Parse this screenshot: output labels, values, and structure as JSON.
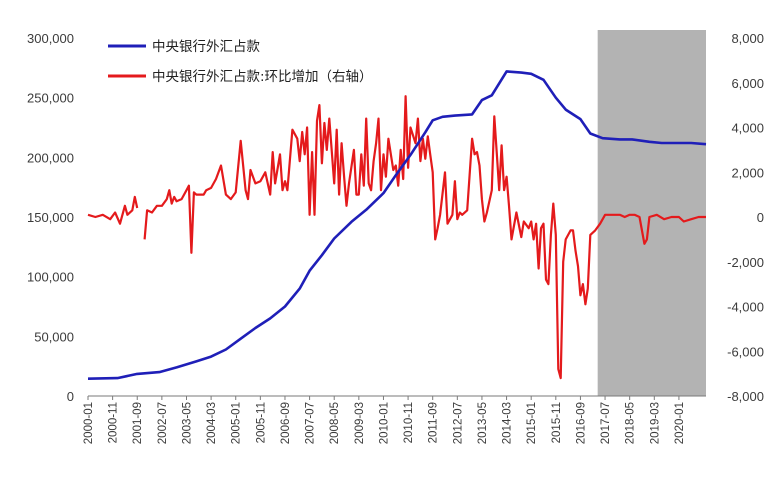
{
  "chart_data": {
    "type": "line",
    "title": "",
    "xlabel": "",
    "ylabel": "",
    "x_tick_labels": [
      "2000-01",
      "2000-11",
      "2001-09",
      "2002-07",
      "2003-05",
      "2004-03",
      "2005-01",
      "2005-11",
      "2006-09",
      "2007-07",
      "2008-05",
      "2009-03",
      "2010-01",
      "2010-11",
      "2011-09",
      "2012-07",
      "2013-05",
      "2014-03",
      "2015-01",
      "2015-11",
      "2016-09",
      "2017-07",
      "2018-05",
      "2019-03",
      "2020-01"
    ],
    "x_range": [
      "2000-01",
      "2020-12"
    ],
    "ylim_left": [
      0,
      300000
    ],
    "ylim_right": [
      -8000,
      8000
    ],
    "y_left_ticks": [
      "0",
      "50,000",
      "100,000",
      "150,000",
      "200,000",
      "250,000",
      "300,000"
    ],
    "y_right_ticks": [
      "-8,000",
      "-6,000",
      "-4,000",
      "-2,000",
      "0",
      "2,000",
      "4,000",
      "6,000",
      "8,000"
    ],
    "shaded_region": {
      "from": "2017-04",
      "to": "2020-12",
      "color": "#b3b3b3"
    },
    "legend_position": "top-left",
    "series": [
      {
        "name": "中央银行外汇占款",
        "axis": "left",
        "color": "#1f1fb8",
        "points": [
          [
            "2000-01",
            14500
          ],
          [
            "2001-01",
            15000
          ],
          [
            "2001-09",
            18500
          ],
          [
            "2002-06",
            20000
          ],
          [
            "2003-01",
            24000
          ],
          [
            "2003-09",
            29000
          ],
          [
            "2004-03",
            33000
          ],
          [
            "2004-09",
            39000
          ],
          [
            "2005-03",
            48000
          ],
          [
            "2005-09",
            57000
          ],
          [
            "2006-03",
            65000
          ],
          [
            "2006-09",
            75000
          ],
          [
            "2007-03",
            90000
          ],
          [
            "2007-07",
            105000
          ],
          [
            "2007-12",
            118000
          ],
          [
            "2008-05",
            132000
          ],
          [
            "2008-12",
            146000
          ],
          [
            "2009-06",
            156000
          ],
          [
            "2010-01",
            170000
          ],
          [
            "2010-06",
            185000
          ],
          [
            "2010-12",
            202000
          ],
          [
            "2011-06",
            221000
          ],
          [
            "2011-09",
            231000
          ],
          [
            "2012-01",
            234000
          ],
          [
            "2012-06",
            235000
          ],
          [
            "2013-01",
            236000
          ],
          [
            "2013-05",
            248000
          ],
          [
            "2013-09",
            252000
          ],
          [
            "2014-03",
            272000
          ],
          [
            "2014-09",
            271000
          ],
          [
            "2015-01",
            270000
          ],
          [
            "2015-06",
            265000
          ],
          [
            "2015-11",
            250000
          ],
          [
            "2016-03",
            240000
          ],
          [
            "2016-09",
            232000
          ],
          [
            "2017-01",
            220000
          ],
          [
            "2017-06",
            216000
          ],
          [
            "2018-01",
            215000
          ],
          [
            "2018-06",
            215000
          ],
          [
            "2019-01",
            213000
          ],
          [
            "2019-06",
            212000
          ],
          [
            "2020-06",
            212000
          ],
          [
            "2020-12",
            211000
          ]
        ]
      },
      {
        "name": "中央银行外汇占款:环比增加（右轴）",
        "axis": "right",
        "color": "#e41a1c",
        "segments": [
          [
            [
              "2000-01",
              100
            ],
            [
              "2000-04",
              0
            ],
            [
              "2000-07",
              100
            ],
            [
              "2000-10",
              -100
            ],
            [
              "2000-12",
              200
            ],
            [
              "2001-02",
              -300
            ],
            [
              "2001-04",
              500
            ],
            [
              "2001-05",
              100
            ],
            [
              "2001-07",
              300
            ],
            [
              "2001-08",
              900
            ],
            [
              "2001-09",
              400
            ]
          ],
          [
            [
              "2001-12",
              -1000
            ],
            [
              "2002-01",
              300
            ],
            [
              "2002-03",
              200
            ],
            [
              "2002-05",
              500
            ],
            [
              "2002-07",
              500
            ],
            [
              "2002-09",
              800
            ],
            [
              "2002-10",
              1200
            ],
            [
              "2002-11",
              600
            ],
            [
              "2002-12",
              900
            ],
            [
              "2003-01",
              700
            ],
            [
              "2003-03",
              800
            ],
            [
              "2003-05",
              1200
            ],
            [
              "2003-06",
              1400
            ],
            [
              "2003-07",
              -1600
            ],
            [
              "2003-08",
              1100
            ],
            [
              "2003-09",
              1000
            ],
            [
              "2003-10",
              1000
            ],
            [
              "2003-12",
              1000
            ],
            [
              "2004-01",
              1200
            ],
            [
              "2004-03",
              1300
            ],
            [
              "2004-05",
              1700
            ],
            [
              "2004-07",
              2300
            ],
            [
              "2004-09",
              1000
            ],
            [
              "2004-11",
              800
            ],
            [
              "2005-01",
              1100
            ],
            [
              "2005-03",
              3400
            ],
            [
              "2005-05",
              1200
            ],
            [
              "2005-06",
              800
            ],
            [
              "2005-07",
              2100
            ],
            [
              "2005-09",
              1500
            ],
            [
              "2005-11",
              1600
            ],
            [
              "2006-01",
              2000
            ],
            [
              "2006-03",
              1000
            ],
            [
              "2006-04",
              2900
            ],
            [
              "2006-05",
              1500
            ],
            [
              "2006-07",
              2800
            ],
            [
              "2006-08",
              1200
            ],
            [
              "2006-09",
              1600
            ],
            [
              "2006-10",
              1200
            ],
            [
              "2006-12",
              3900
            ],
            [
              "2007-02",
              3500
            ],
            [
              "2007-03",
              2500
            ],
            [
              "2007-04",
              3800
            ],
            [
              "2007-05",
              2800
            ],
            [
              "2007-06",
              4000
            ],
            [
              "2007-07",
              100
            ],
            [
              "2007-08",
              2900
            ],
            [
              "2007-09",
              100
            ],
            [
              "2007-10",
              4300
            ],
            [
              "2007-11",
              5000
            ],
            [
              "2007-12",
              2400
            ],
            [
              "2008-01",
              4200
            ],
            [
              "2008-02",
              3000
            ],
            [
              "2008-03",
              4400
            ],
            [
              "2008-05",
              1500
            ],
            [
              "2008-06",
              3900
            ],
            [
              "2008-07",
              1000
            ],
            [
              "2008-08",
              3300
            ],
            [
              "2008-09",
              1800
            ],
            [
              "2008-10",
              500
            ],
            [
              "2008-11",
              1500
            ],
            [
              "2009-01",
              3000
            ],
            [
              "2009-02",
              1000
            ],
            [
              "2009-03",
              1000
            ],
            [
              "2009-04",
              2800
            ],
            [
              "2009-05",
              1400
            ],
            [
              "2009-06",
              4400
            ],
            [
              "2009-07",
              1500
            ],
            [
              "2009-08",
              1200
            ],
            [
              "2009-09",
              2500
            ],
            [
              "2009-10",
              3300
            ],
            [
              "2009-11",
              4400
            ],
            [
              "2009-12",
              1200
            ],
            [
              "2010-01",
              2800
            ],
            [
              "2010-02",
              1800
            ],
            [
              "2010-03",
              3500
            ],
            [
              "2010-05",
              2100
            ],
            [
              "2010-06",
              2300
            ],
            [
              "2010-07",
              1400
            ],
            [
              "2010-08",
              3000
            ],
            [
              "2010-09",
              1700
            ],
            [
              "2010-10",
              5400
            ],
            [
              "2010-11",
              2200
            ],
            [
              "2010-12",
              4000
            ],
            [
              "2011-02",
              3300
            ],
            [
              "2011-03",
              4400
            ],
            [
              "2011-04",
              2500
            ],
            [
              "2011-05",
              3500
            ],
            [
              "2011-06",
              2600
            ],
            [
              "2011-07",
              3600
            ],
            [
              "2011-08",
              2800
            ],
            [
              "2011-09",
              2000
            ],
            [
              "2011-10",
              -1000
            ],
            [
              "2011-11",
              -500
            ],
            [
              "2011-12",
              100
            ],
            [
              "2012-02",
              2000
            ],
            [
              "2012-03",
              -300
            ],
            [
              "2012-05",
              100
            ],
            [
              "2012-06",
              1600
            ],
            [
              "2012-07",
              -100
            ],
            [
              "2012-08",
              200
            ],
            [
              "2012-09",
              100
            ],
            [
              "2012-11",
              300
            ],
            [
              "2013-01",
              3500
            ],
            [
              "2013-02",
              2800
            ],
            [
              "2013-03",
              2900
            ],
            [
              "2013-04",
              2300
            ],
            [
              "2013-05",
              800
            ],
            [
              "2013-06",
              -200
            ],
            [
              "2013-07",
              200
            ],
            [
              "2013-09",
              1200
            ],
            [
              "2013-10",
              4500
            ],
            [
              "2013-11",
              2900
            ],
            [
              "2013-12",
              1200
            ],
            [
              "2014-01",
              3200
            ],
            [
              "2014-02",
              1200
            ],
            [
              "2014-03",
              1800
            ],
            [
              "2014-04",
              500
            ],
            [
              "2014-05",
              -1000
            ],
            [
              "2014-07",
              200
            ],
            [
              "2014-09",
              -900
            ],
            [
              "2014-10",
              -200
            ],
            [
              "2014-12",
              -500
            ],
            [
              "2015-01",
              -200
            ],
            [
              "2015-02",
              -1000
            ],
            [
              "2015-03",
              -300
            ],
            [
              "2015-04",
              -2300
            ],
            [
              "2015-05",
              -500
            ],
            [
              "2015-06",
              -300
            ],
            [
              "2015-07",
              -2800
            ],
            [
              "2015-08",
              -3000
            ],
            [
              "2015-09",
              -800
            ],
            [
              "2015-10",
              600
            ],
            [
              "2015-11",
              -800
            ],
            [
              "2015-12",
              -6800
            ],
            [
              "2016-01",
              -7200
            ],
            [
              "2016-02",
              -2000
            ],
            [
              "2016-03",
              -1000
            ],
            [
              "2016-05",
              -600
            ],
            [
              "2016-06",
              -600
            ],
            [
              "2016-07",
              -1500
            ],
            [
              "2016-08",
              -2200
            ],
            [
              "2016-09",
              -3500
            ],
            [
              "2016-10",
              -3000
            ],
            [
              "2016-11",
              -3900
            ],
            [
              "2016-12",
              -3200
            ],
            [
              "2017-01",
              -800
            ],
            [
              "2017-03",
              -600
            ],
            [
              "2017-05",
              -300
            ],
            [
              "2017-07",
              100
            ],
            [
              "2017-09",
              100
            ],
            [
              "2017-11",
              100
            ],
            [
              "2018-01",
              100
            ],
            [
              "2018-03",
              0
            ],
            [
              "2018-05",
              100
            ],
            [
              "2018-07",
              100
            ],
            [
              "2018-09",
              0
            ],
            [
              "2018-11",
              -1200
            ],
            [
              "2018-12",
              -1000
            ],
            [
              "2019-01",
              0
            ],
            [
              "2019-04",
              100
            ],
            [
              "2019-07",
              -100
            ],
            [
              "2019-10",
              0
            ],
            [
              "2020-01",
              0
            ],
            [
              "2020-03",
              -200
            ],
            [
              "2020-06",
              -100
            ],
            [
              "2020-09",
              0
            ],
            [
              "2020-12",
              0
            ]
          ]
        ]
      }
    ]
  }
}
